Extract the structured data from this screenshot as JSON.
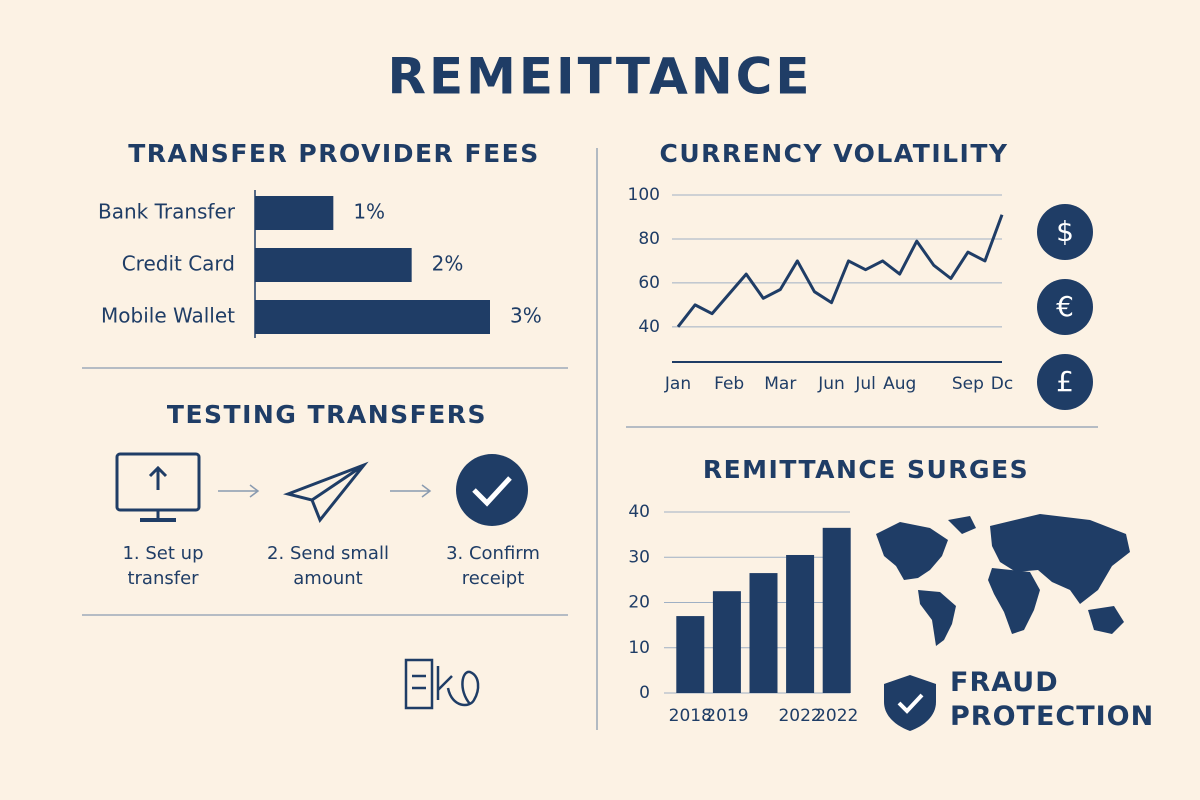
{
  "title": "REMEITTANCE",
  "chart_data": [
    {
      "type": "hbar",
      "title": "TRANSFER PROVIDER FEES",
      "categories": [
        "Bank Transfer",
        "Credit Card",
        "Mobile Wallet"
      ],
      "values": [
        1,
        2,
        3
      ],
      "value_labels": [
        "1%",
        "2%",
        "3%"
      ],
      "color": "#1f3d66"
    },
    {
      "type": "line",
      "title": "CURRENCY VOLATILITY",
      "categories": [
        "Jan",
        null,
        null,
        "Feb",
        null,
        null,
        "Mar",
        null,
        null,
        "Jun",
        null,
        "Jul",
        null,
        "Aug",
        null,
        null,
        null,
        "Sep",
        null,
        "Dc"
      ],
      "values": [
        40,
        50,
        46,
        55,
        64,
        53,
        57,
        70,
        56,
        51,
        70,
        66,
        70,
        64,
        79,
        68,
        62,
        74,
        70,
        91
      ],
      "ylim": [
        24,
        100
      ],
      "yticks": [
        40,
        60,
        80,
        100
      ],
      "grid": true,
      "color": "#1f3d66"
    },
    {
      "type": "bar",
      "title": "REMITTANCE SURGES",
      "categories": [
        "2018",
        "2019",
        null,
        "2022",
        "2022"
      ],
      "values": [
        17,
        22.5,
        26.5,
        30.5,
        36.5
      ],
      "ylim": [
        0,
        40
      ],
      "yticks": [
        0,
        10,
        20,
        30,
        40
      ],
      "grid": true,
      "color": "#1f3d66"
    }
  ],
  "currencies": [
    "$",
    "€",
    "£"
  ],
  "testing": {
    "title": "TESTING TRANSFERS",
    "steps": [
      "1. Set up transfer",
      "2. Send small amount",
      "3. Confirm receipt"
    ]
  },
  "fraud": "FRAUD PROTECTION"
}
